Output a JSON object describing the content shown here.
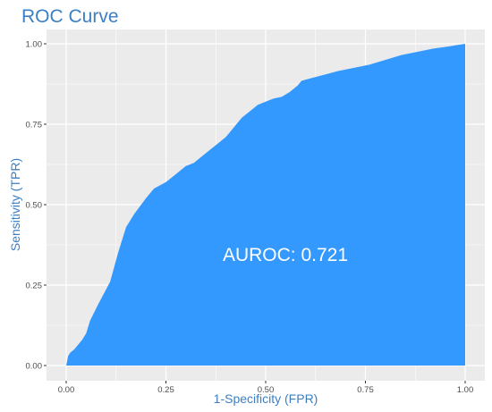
{
  "chart_data": {
    "type": "area",
    "title": "ROC Curve",
    "xlabel": "1-Specificity (FPR)",
    "ylabel": "Sensitivity (TPR)",
    "xlim": [
      0,
      1
    ],
    "ylim": [
      0,
      1
    ],
    "x_ticks": [
      "0.00",
      "0.25",
      "0.50",
      "0.75",
      "1.00"
    ],
    "y_ticks": [
      "0.00",
      "0.25",
      "0.50",
      "0.75",
      "1.00"
    ],
    "grid": true,
    "annotation": "AUROC: 0.721",
    "series": [
      {
        "x": [
          0,
          0.005,
          0.01,
          0.02,
          0.04,
          0.05,
          0.06,
          0.08,
          0.11,
          0.13,
          0.15,
          0.17,
          0.2,
          0.22,
          0.25,
          0.26,
          0.28,
          0.3,
          0.32,
          0.34,
          0.36,
          0.38,
          0.4,
          0.42,
          0.44,
          0.46,
          0.48,
          0.5,
          0.52,
          0.54,
          0.56,
          0.58,
          0.59,
          0.62,
          0.65,
          0.68,
          0.72,
          0.76,
          0.8,
          0.84,
          0.88,
          0.92,
          0.96,
          1
        ],
        "y": [
          0,
          0.03,
          0.04,
          0.05,
          0.08,
          0.1,
          0.14,
          0.19,
          0.26,
          0.35,
          0.43,
          0.47,
          0.52,
          0.55,
          0.57,
          0.58,
          0.6,
          0.62,
          0.63,
          0.65,
          0.67,
          0.69,
          0.71,
          0.74,
          0.77,
          0.79,
          0.81,
          0.82,
          0.83,
          0.835,
          0.85,
          0.87,
          0.885,
          0.895,
          0.905,
          0.915,
          0.925,
          0.935,
          0.95,
          0.965,
          0.975,
          0.985,
          0.992,
          1.0
        ],
        "fill_color": "#3399ff"
      }
    ],
    "panel_color": "#ebebeb",
    "grid_color": "#ffffff",
    "title_color": "#3b7fc4"
  }
}
